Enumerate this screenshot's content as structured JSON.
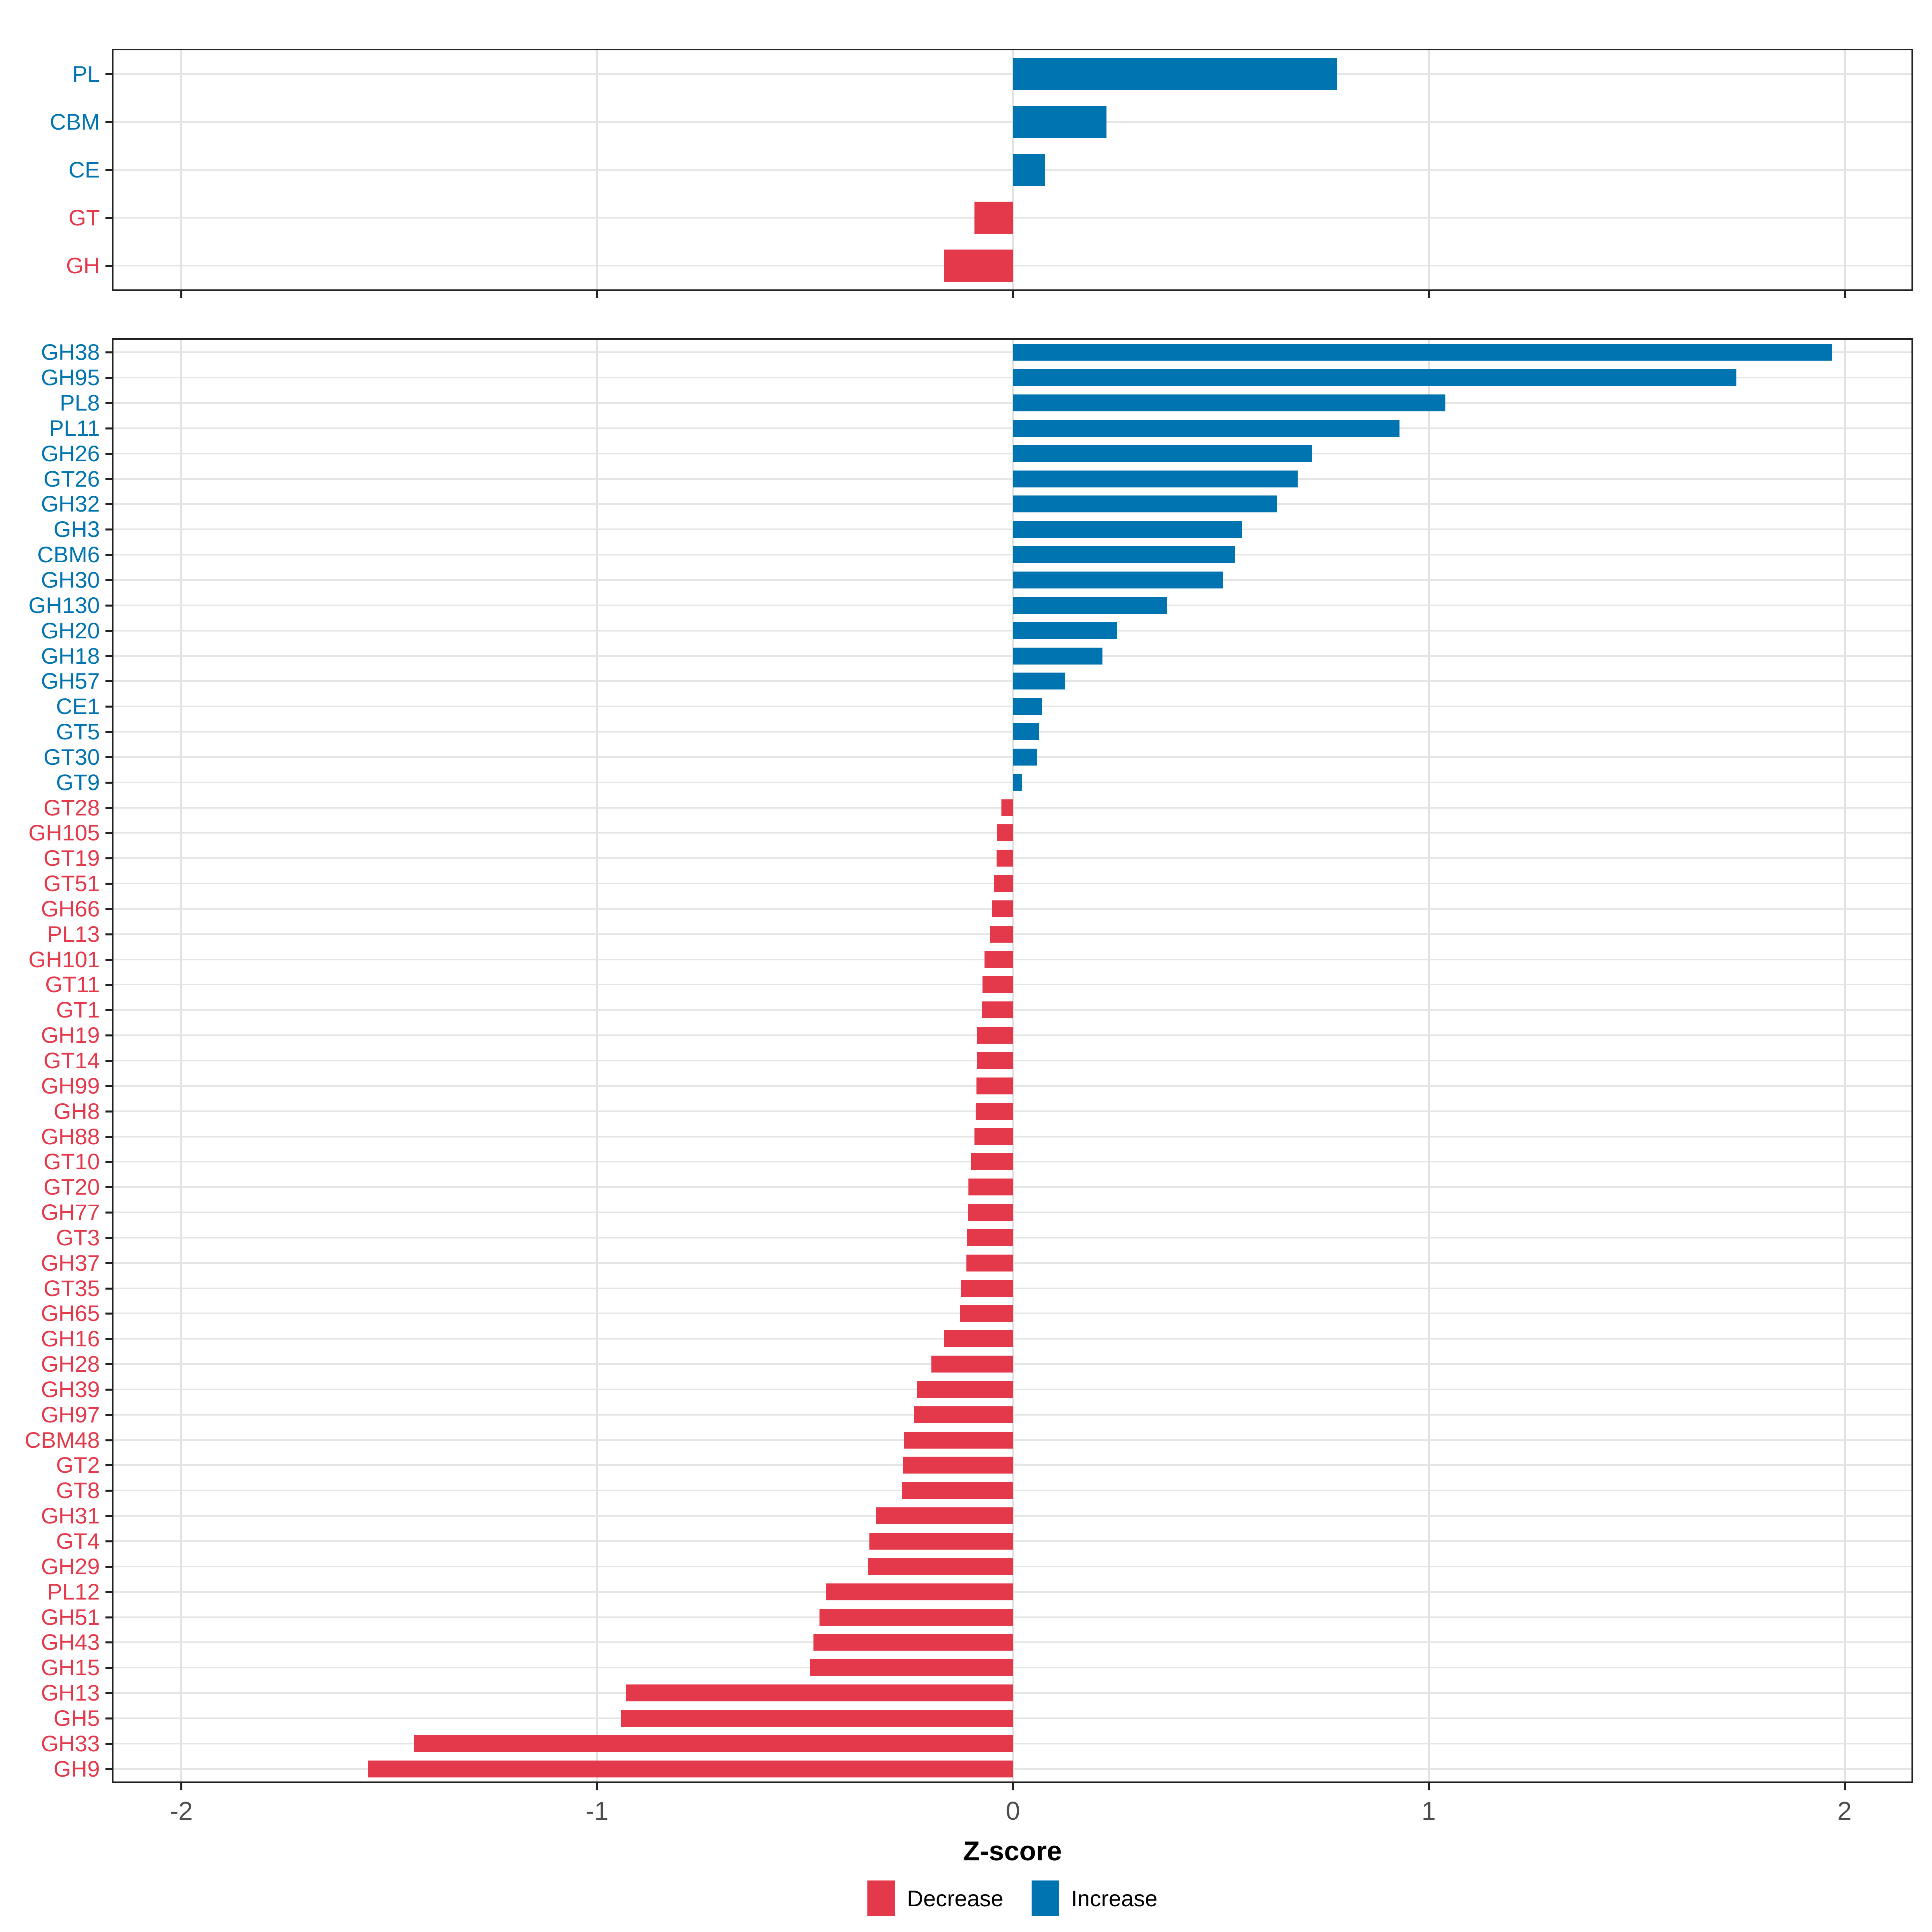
{
  "axis": {
    "xlabel": "Z-score",
    "xticks": [
      "-2",
      "-1",
      "0",
      "1",
      "2"
    ],
    "xtick_values": [
      -2,
      -1,
      0,
      1,
      2
    ],
    "xmin": -2.163,
    "xmax": 2.161
  },
  "legend": {
    "items": [
      {
        "label": "Decrease",
        "key": "decrease"
      },
      {
        "label": "Increase",
        "key": "increase"
      }
    ]
  },
  "colors": {
    "increase": "#0073B1",
    "decrease": "#E4394B",
    "grid": "#E5E5E5",
    "border": "#222222",
    "tick": "#222222",
    "axis_text": "#4D4D4D"
  },
  "chart_data": [
    {
      "type": "bar",
      "orientation": "horizontal",
      "panel": "enzyme-class",
      "title": "",
      "xlabel": "Z-score",
      "xlim": [
        -2.163,
        2.161
      ],
      "grid": true,
      "legend_position": "bottom",
      "categories": [
        "PL",
        "CBM",
        "CE",
        "GT",
        "GH"
      ],
      "values": [
        0.78,
        0.225,
        0.077,
        -0.092,
        -0.165
      ]
    },
    {
      "type": "bar",
      "orientation": "horizontal",
      "panel": "cazyme-family",
      "title": "",
      "xlabel": "Z-score",
      "xlim": [
        -2.163,
        2.161
      ],
      "grid": true,
      "legend_position": "bottom",
      "categories": [
        "GH38",
        "GH95",
        "PL8",
        "PL11",
        "GH26",
        "GT26",
        "GH32",
        "GH3",
        "CBM6",
        "GH30",
        "GH130",
        "GH20",
        "GH18",
        "GH57",
        "CE1",
        "GT5",
        "GT30",
        "GT9",
        "GT28",
        "GH105",
        "GT19",
        "GT51",
        "GH66",
        "PL13",
        "GH101",
        "GT11",
        "GT1",
        "GH19",
        "GT14",
        "GH99",
        "GH8",
        "GH88",
        "GT10",
        "GT20",
        "GH77",
        "GT3",
        "GH37",
        "GT35",
        "GH65",
        "GH16",
        "GH28",
        "GH39",
        "GH97",
        "CBM48",
        "GT2",
        "GT8",
        "GH31",
        "GT4",
        "GH29",
        "PL12",
        "GH51",
        "GH43",
        "GH15",
        "GH13",
        "GH5",
        "GH33",
        "GH9"
      ],
      "values": [
        1.97,
        1.74,
        1.04,
        0.93,
        0.72,
        0.685,
        0.635,
        0.55,
        0.535,
        0.505,
        0.37,
        0.25,
        0.215,
        0.125,
        0.07,
        0.063,
        0.059,
        0.022,
        -0.028,
        -0.038,
        -0.039,
        -0.045,
        -0.05,
        -0.056,
        -0.068,
        -0.073,
        -0.074,
        -0.086,
        -0.087,
        -0.088,
        -0.09,
        -0.092,
        -0.1,
        -0.107,
        -0.108,
        -0.11,
        -0.112,
        -0.125,
        -0.127,
        -0.165,
        -0.196,
        -0.23,
        -0.238,
        -0.262,
        -0.264,
        -0.267,
        -0.33,
        -0.345,
        -0.349,
        -0.45,
        -0.465,
        -0.48,
        -0.487,
        -0.93,
        -0.942,
        -1.44,
        -1.55
      ]
    }
  ]
}
